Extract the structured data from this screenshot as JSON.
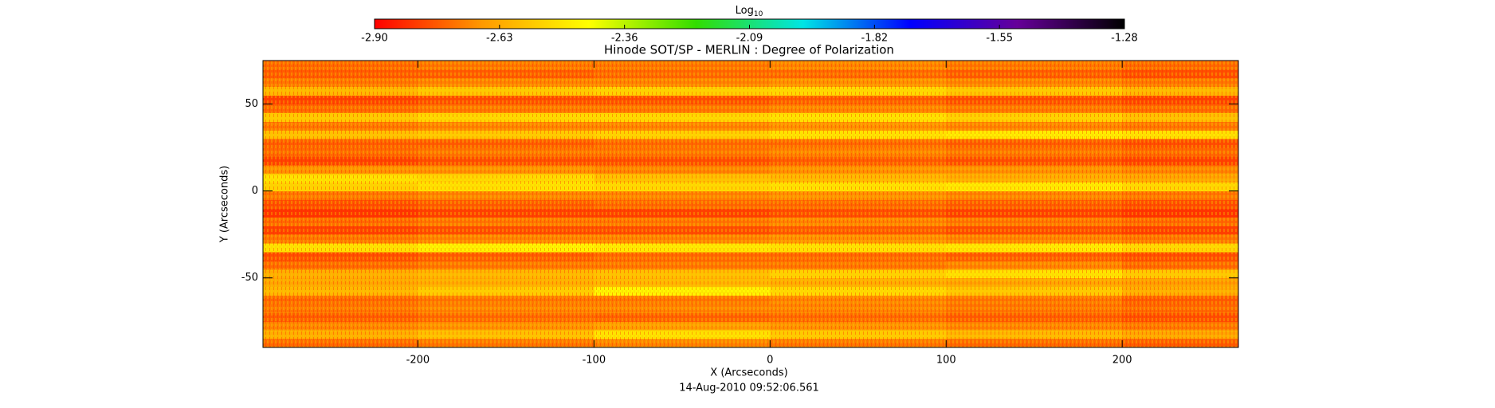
{
  "chart_data": {
    "type": "heatmap",
    "title": "Hinode SOT/SP - MERLIN : Degree of Polarization",
    "xlabel": "X (Arcseconds)",
    "ylabel": "Y (Arcseconds)",
    "annotation": "14-Aug-2010 09:52:06.561",
    "colorbar_label": "Log",
    "colorbar_label_subscript": "10",
    "colormap": [
      "#ff0000",
      "#ff9900",
      "#ffff00",
      "#33dd00",
      "#00e5e5",
      "#0000ff",
      "#660099",
      "#000000"
    ],
    "clim": [
      -2.9,
      -1.28
    ],
    "cticks": [
      {
        "value": -2.9,
        "label": "-2.90"
      },
      -2.63,
      -2.36,
      -2.09,
      -1.82,
      -1.55,
      -1.28
    ],
    "xlim": [
      -288,
      266
    ],
    "ylim": [
      -90,
      75
    ],
    "xticks": [
      -200,
      -100,
      0,
      100,
      200
    ],
    "yticks": [
      -50,
      0,
      50
    ],
    "x_edges": [
      -288,
      -200,
      -100,
      0,
      100,
      200,
      266
    ],
    "y_edges": [
      -90,
      -85,
      -80,
      -75,
      -70,
      -65,
      -60,
      -55,
      -50,
      -45,
      -40,
      -35,
      -30,
      -25,
      -20,
      -15,
      -10,
      -5,
      0,
      5,
      10,
      15,
      20,
      25,
      30,
      35,
      40,
      45,
      50,
      55,
      60,
      65,
      70,
      75
    ],
    "z": [
      [
        -2.74,
        -2.72,
        -2.7,
        -2.72,
        -2.74,
        -2.76
      ],
      [
        -2.62,
        -2.58,
        -2.5,
        -2.56,
        -2.6,
        -2.64
      ],
      [
        -2.7,
        -2.68,
        -2.66,
        -2.68,
        -2.7,
        -2.72
      ],
      [
        -2.76,
        -2.74,
        -2.75,
        -2.74,
        -2.76,
        -2.78
      ],
      [
        -2.72,
        -2.7,
        -2.7,
        -2.7,
        -2.72,
        -2.74
      ],
      [
        -2.74,
        -2.72,
        -2.72,
        -2.7,
        -2.72,
        -2.76
      ],
      [
        -2.6,
        -2.55,
        -2.46,
        -2.52,
        -2.56,
        -2.62
      ],
      [
        -2.64,
        -2.62,
        -2.6,
        -2.62,
        -2.64,
        -2.66
      ],
      [
        -2.62,
        -2.6,
        -2.58,
        -2.54,
        -2.5,
        -2.56
      ],
      [
        -2.74,
        -2.72,
        -2.72,
        -2.72,
        -2.7,
        -2.74
      ],
      [
        -2.78,
        -2.76,
        -2.74,
        -2.74,
        -2.76,
        -2.78
      ],
      [
        -2.5,
        -2.46,
        -2.48,
        -2.5,
        -2.48,
        -2.52
      ],
      [
        -2.72,
        -2.7,
        -2.7,
        -2.68,
        -2.7,
        -2.72
      ],
      [
        -2.8,
        -2.78,
        -2.78,
        -2.76,
        -2.78,
        -2.8
      ],
      [
        -2.74,
        -2.72,
        -2.72,
        -2.7,
        -2.72,
        -2.74
      ],
      [
        -2.82,
        -2.8,
        -2.8,
        -2.78,
        -2.8,
        -2.82
      ],
      [
        -2.78,
        -2.76,
        -2.74,
        -2.74,
        -2.76,
        -2.78
      ],
      [
        -2.72,
        -2.7,
        -2.7,
        -2.68,
        -2.7,
        -2.72
      ],
      [
        -2.54,
        -2.5,
        -2.52,
        -2.5,
        -2.48,
        -2.52
      ],
      [
        -2.5,
        -2.52,
        -2.58,
        -2.6,
        -2.62,
        -2.64
      ],
      [
        -2.68,
        -2.68,
        -2.7,
        -2.68,
        -2.68,
        -2.7
      ],
      [
        -2.8,
        -2.78,
        -2.78,
        -2.76,
        -2.78,
        -2.8
      ],
      [
        -2.74,
        -2.72,
        -2.72,
        -2.7,
        -2.72,
        -2.74
      ],
      [
        -2.76,
        -2.76,
        -2.74,
        -2.74,
        -2.76,
        -2.78
      ],
      [
        -2.58,
        -2.56,
        -2.54,
        -2.5,
        -2.48,
        -2.5
      ],
      [
        -2.72,
        -2.7,
        -2.7,
        -2.68,
        -2.7,
        -2.72
      ],
      [
        -2.56,
        -2.52,
        -2.52,
        -2.5,
        -2.54,
        -2.58
      ],
      [
        -2.74,
        -2.72,
        -2.72,
        -2.7,
        -2.72,
        -2.74
      ],
      [
        -2.8,
        -2.78,
        -2.78,
        -2.76,
        -2.78,
        -2.8
      ],
      [
        -2.6,
        -2.56,
        -2.54,
        -2.52,
        -2.56,
        -2.6
      ],
      [
        -2.72,
        -2.7,
        -2.7,
        -2.68,
        -2.7,
        -2.72
      ],
      [
        -2.76,
        -2.76,
        -2.74,
        -2.74,
        -2.76,
        -2.78
      ],
      [
        -2.74,
        -2.72,
        -2.72,
        -2.7,
        -2.72,
        -2.74
      ]
    ]
  }
}
